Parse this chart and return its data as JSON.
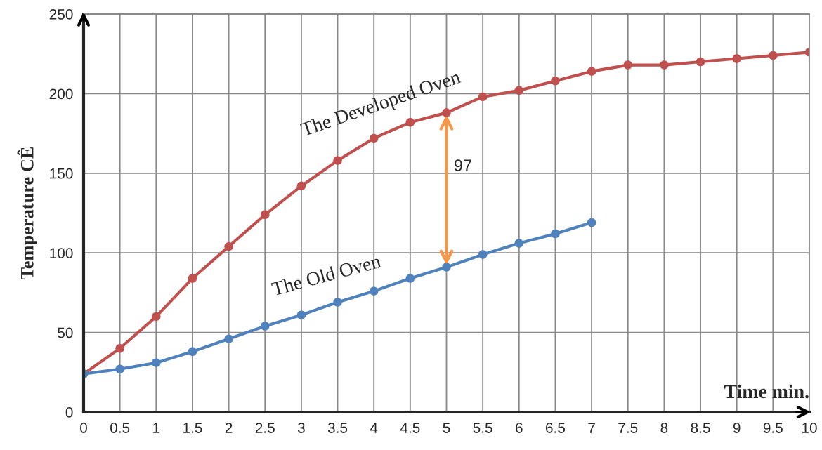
{
  "chart_data": {
    "type": "line",
    "xlabel": "Time min.",
    "ylabel": "Temperature CÊ",
    "x": [
      0,
      0.5,
      1,
      1.5,
      2,
      2.5,
      3,
      3.5,
      4,
      4.5,
      5,
      5.5,
      6,
      6.5,
      7,
      7.5,
      8,
      8.5,
      9,
      9.5,
      10
    ],
    "series": [
      {
        "name": "The Developed Oven",
        "color": "#c0504d",
        "values": [
          24,
          40,
          60,
          84,
          104,
          124,
          142,
          158,
          172,
          182,
          188,
          198,
          202,
          208,
          214,
          218,
          218,
          220,
          222,
          224,
          226
        ]
      },
      {
        "name": "The Old Oven",
        "color": "#4f81bd",
        "values": [
          24,
          27,
          31,
          38,
          46,
          54,
          61,
          69,
          76,
          84,
          91,
          99,
          106,
          112,
          119,
          null,
          null,
          null,
          null,
          null,
          null
        ]
      }
    ],
    "annotations": [
      {
        "text": "97",
        "x": 5,
        "y": 188
      }
    ],
    "xlim": [
      0,
      10
    ],
    "ylim": [
      0,
      250
    ],
    "xticks": [
      0,
      0.5,
      1,
      1.5,
      2,
      2.5,
      3,
      3.5,
      4,
      4.5,
      5,
      5.5,
      6,
      6.5,
      7,
      7.5,
      8,
      8.5,
      9,
      9.5,
      10
    ],
    "yticks": [
      0,
      50,
      100,
      150,
      200,
      250
    ],
    "grid": true,
    "legend": false,
    "marker": "circle",
    "line_style": "solid"
  }
}
